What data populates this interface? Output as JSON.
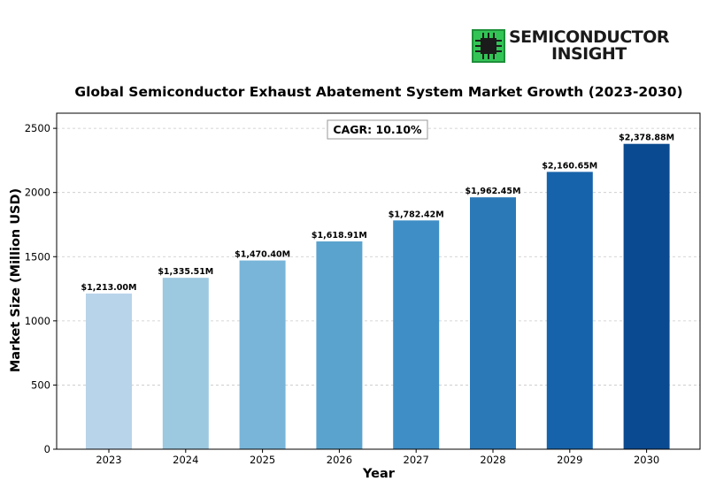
{
  "logo": {
    "line1": "SEMICONDUCTOR",
    "line2": "INSIGHT",
    "chip_color": "#2bb24c"
  },
  "chart_data": {
    "type": "bar",
    "title": "Global Semiconductor Exhaust Abatement System Market Growth (2023-2030)",
    "xlabel": "Year",
    "ylabel": "Market Size (Million USD)",
    "categories": [
      "2023",
      "2024",
      "2025",
      "2026",
      "2027",
      "2028",
      "2029",
      "2030"
    ],
    "values": [
      1213.0,
      1335.51,
      1470.4,
      1618.91,
      1782.42,
      1962.45,
      2160.65,
      2378.88
    ],
    "data_labels": [
      "$1,213.00M",
      "$1,335.51M",
      "$1,470.40M",
      "$1,618.91M",
      "$1,782.42M",
      "$1,962.45M",
      "$2,160.65M",
      "$2,378.88M"
    ],
    "ylim": [
      0,
      2618
    ],
    "yticks": [
      0,
      500,
      1000,
      1500,
      2000,
      2500
    ],
    "grid": true,
    "annotation": "CAGR: 10.10%",
    "bar_colors": [
      "#b8d4ea",
      "#9cc8e0",
      "#78b5d9",
      "#5aa3ce",
      "#3f8ec6",
      "#2c79b8",
      "#1663ab",
      "#0a4a90"
    ]
  }
}
